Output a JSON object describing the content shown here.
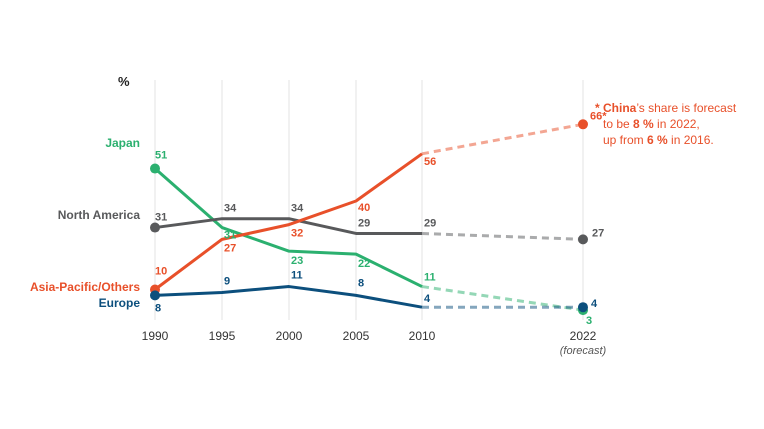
{
  "chart_data": {
    "type": "line",
    "ylabel": "%",
    "x": [
      "1990",
      "1995",
      "2000",
      "2005",
      "2010",
      "2022"
    ],
    "x_forecast_note": "(forecast)",
    "forecast_from_index": 4,
    "ylim": [
      0,
      70
    ],
    "grid": "vertical lines at each year",
    "series": [
      {
        "key": "japan",
        "name": "Japan",
        "color": "#2bb06f",
        "values": [
          51,
          31,
          23,
          22,
          11,
          3
        ],
        "labels": [
          "51",
          "31",
          "23",
          "22",
          "11",
          "3"
        ]
      },
      {
        "key": "na",
        "name": "North America",
        "color": "#58595b",
        "values": [
          31,
          34,
          34,
          29,
          29,
          27
        ],
        "labels": [
          "31",
          "34",
          "34",
          "29",
          "29",
          "27"
        ]
      },
      {
        "key": "asia",
        "name": "Asia-Pacific/Others",
        "color": "#e8502a",
        "values": [
          10,
          27,
          32,
          40,
          56,
          66
        ],
        "labels": [
          "10",
          "27",
          "32",
          "40",
          "56",
          "66*"
        ]
      },
      {
        "key": "europe",
        "name": "Europe",
        "color": "#0c4f7d",
        "values": [
          8,
          9,
          11,
          8,
          4,
          4
        ],
        "labels": [
          "8",
          "9",
          "11",
          "8",
          "4",
          "4"
        ]
      }
    ],
    "annotation": {
      "star": "*",
      "lines": [
        [
          {
            "t": "China",
            "b": true
          },
          {
            "t": "’s share is forecast",
            "b": false
          }
        ],
        [
          {
            "t": "to be ",
            "b": false
          },
          {
            "t": "8 %",
            "b": true
          },
          {
            "t": " in 2022,",
            "b": false
          }
        ],
        [
          {
            "t": "up from ",
            "b": false
          },
          {
            "t": "6 %",
            "b": true
          },
          {
            "t": " in 2016.",
            "b": false
          }
        ]
      ],
      "color": "#e8502a"
    }
  }
}
